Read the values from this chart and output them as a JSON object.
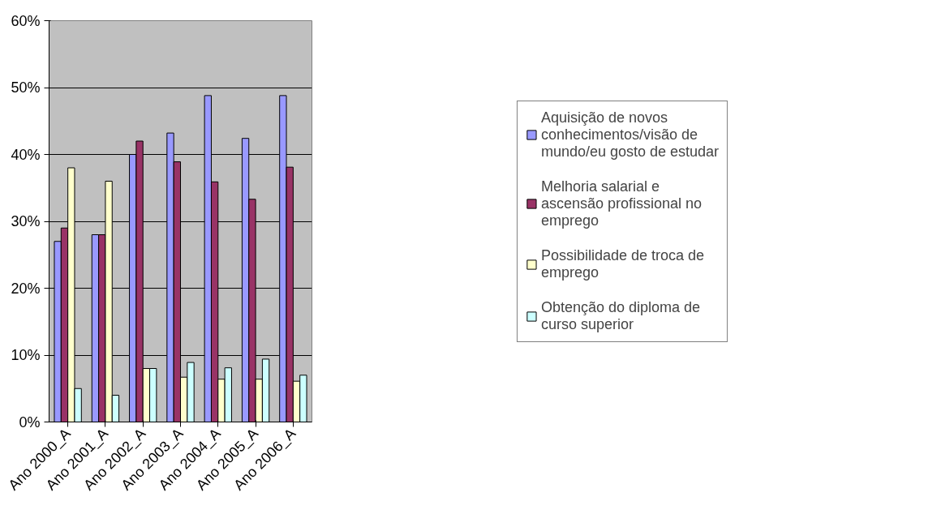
{
  "chart_data": {
    "type": "bar",
    "categories": [
      "Ano 2000_A",
      "Ano 2001_A",
      "Ano 2002_A",
      "Ano 2003_A",
      "Ano 2004_A",
      "Ano 2005_A",
      "Ano 2006_A"
    ],
    "series": [
      {
        "name": "Aquisição de novos conhecimentos/visão de mundo/eu gosto de estudar",
        "color": "#9999ff",
        "values": [
          27,
          28,
          40,
          43.2,
          48.8,
          42.4,
          48.8
        ]
      },
      {
        "name": "Melhoria salarial e ascensão profissional no emprego",
        "color": "#993366",
        "values": [
          29,
          28,
          42,
          38.9,
          35.9,
          33.3,
          38.1
        ]
      },
      {
        "name": "Possibilidade de troca de emprego",
        "color": "#ffffcc",
        "values": [
          38,
          36,
          8,
          6.7,
          6.4,
          6.4,
          6.1
        ]
      },
      {
        "name": "Obtenção do diploma de curso superior",
        "color": "#ccffff",
        "values": [
          5,
          4,
          8,
          8.9,
          8.1,
          9.4,
          7.0
        ]
      }
    ],
    "ylim": [
      0,
      60
    ],
    "yticks": [
      {
        "value": 0,
        "label": "0%"
      },
      {
        "value": 10,
        "label": "10%"
      },
      {
        "value": 20,
        "label": "20%"
      },
      {
        "value": 30,
        "label": "30%"
      },
      {
        "value": 40,
        "label": "40%"
      },
      {
        "value": 50,
        "label": "50%"
      },
      {
        "value": 60,
        "label": "60%"
      }
    ],
    "grid": "y",
    "legend": "right"
  }
}
